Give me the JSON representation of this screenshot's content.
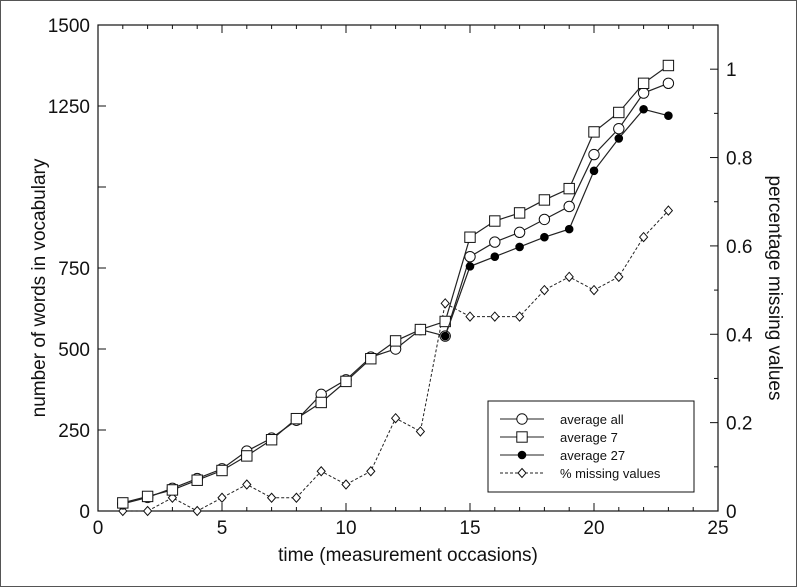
{
  "chart_data": {
    "type": "line",
    "xlabel": "time (measurement occasions)",
    "ylabel": "number of words in vocabulary",
    "y2label": "percentage missing values",
    "xlim": [
      0,
      25
    ],
    "ylim": [
      0,
      1500
    ],
    "y2lim": [
      0,
      1.1
    ],
    "x_ticks": [
      "0",
      "5",
      "10",
      "15",
      "20",
      "25"
    ],
    "y_ticks": [
      "0",
      "250",
      "500",
      "750",
      "1250",
      "1500"
    ],
    "y2_ticks": [
      "0",
      "0.2",
      "0.4",
      "0.6",
      "0.8",
      "1"
    ],
    "grid": false,
    "legend_position": "bottom-right",
    "x": [
      1,
      2,
      3,
      4,
      5,
      6,
      7,
      8,
      9,
      10,
      11,
      12,
      13,
      14,
      15,
      16,
      17,
      18,
      19,
      20,
      21,
      22,
      23
    ],
    "series": [
      {
        "name": "average all",
        "axis": "left",
        "marker": "circle-open",
        "line": "solid",
        "values": [
          22,
          42,
          70,
          100,
          130,
          185,
          225,
          280,
          360,
          405,
          475,
          500,
          560,
          540,
          785,
          830,
          860,
          900,
          940,
          1100,
          1180,
          1290,
          1320
        ]
      },
      {
        "name": "average 7",
        "axis": "left",
        "marker": "square-open",
        "line": "solid",
        "values": [
          25,
          45,
          65,
          95,
          125,
          170,
          220,
          285,
          335,
          400,
          470,
          525,
          560,
          585,
          845,
          895,
          920,
          960,
          995,
          1170,
          1230,
          1320,
          1375
        ]
      },
      {
        "name": "average 27",
        "axis": "left",
        "marker": "circle-filled",
        "line": "solid",
        "values": [
          null,
          null,
          null,
          null,
          null,
          null,
          null,
          null,
          null,
          null,
          null,
          null,
          null,
          540,
          755,
          785,
          815,
          845,
          870,
          1050,
          1150,
          1240,
          1220
        ]
      },
      {
        "name": "% missing values",
        "axis": "right",
        "marker": "diamond-open",
        "line": "dashed",
        "values": [
          0.0,
          0.0,
          0.03,
          0.0,
          0.03,
          0.06,
          0.03,
          0.03,
          0.09,
          0.06,
          0.09,
          0.21,
          0.18,
          0.47,
          0.44,
          0.44,
          0.44,
          0.5,
          0.53,
          0.5,
          0.53,
          0.62,
          0.68
        ]
      }
    ]
  }
}
